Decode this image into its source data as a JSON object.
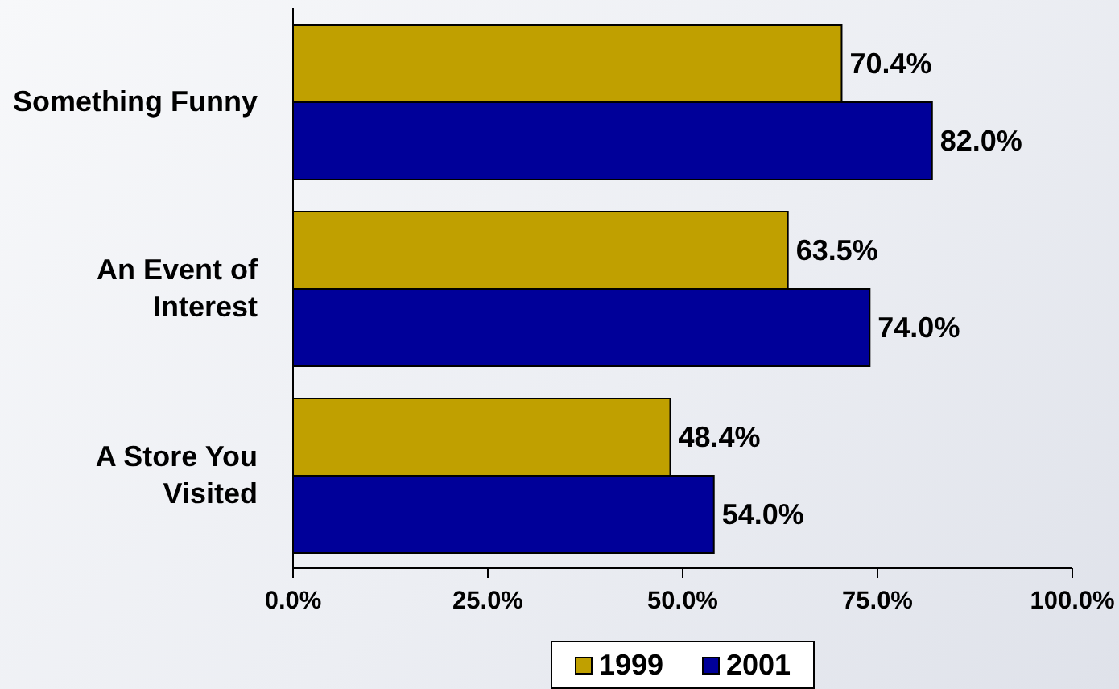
{
  "chart_data": {
    "type": "bar",
    "orientation": "horizontal",
    "categories": [
      "Something Funny",
      "An Event of Interest",
      "A Store You Visited"
    ],
    "series": [
      {
        "name": "1999",
        "color": "#c0a000",
        "values": [
          70.4,
          63.5,
          48.4
        ],
        "value_labels": [
          "70.4%",
          "63.5%",
          "48.4%"
        ]
      },
      {
        "name": "2001",
        "color": "#000099",
        "values": [
          82.0,
          74.0,
          54.0
        ],
        "value_labels": [
          "82.0%",
          "74.0%",
          "54.0%"
        ]
      }
    ],
    "xlim": [
      0,
      100
    ],
    "xticks": [
      {
        "value": 0,
        "label": "0.0%"
      },
      {
        "value": 25,
        "label": "25.0%"
      },
      {
        "value": 50,
        "label": "50.0%"
      },
      {
        "value": 75,
        "label": "75.0%"
      },
      {
        "value": 100,
        "label": "100.0%"
      }
    ],
    "legend": "bottom"
  }
}
